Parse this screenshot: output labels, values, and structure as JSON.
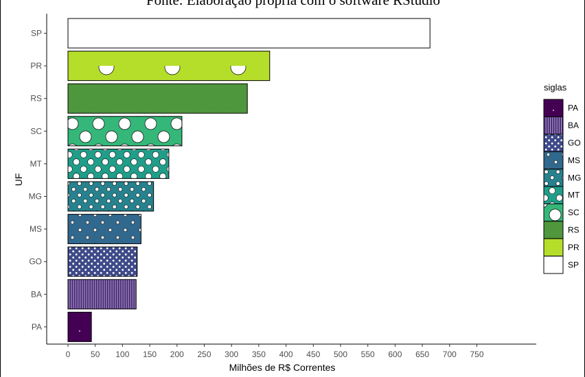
{
  "caption": "Fonte: Elaboração própria com o software RStudio",
  "chart_data": {
    "type": "bar",
    "orientation": "horizontal",
    "categories": [
      "SP",
      "PR",
      "RS",
      "SC",
      "MT",
      "MG",
      "MS",
      "GO",
      "BA",
      "PA"
    ],
    "values": [
      664,
      370,
      329,
      209,
      185,
      157,
      134,
      127,
      125,
      43
    ],
    "xlabel": "Milhões de R$ Correntes",
    "ylabel": "UF",
    "xlim": [
      0,
      790
    ],
    "xticks": [
      0,
      50,
      100,
      150,
      200,
      250,
      300,
      350,
      400,
      450,
      500,
      550,
      600,
      650,
      700,
      750
    ],
    "grid": false,
    "legend": {
      "title": "siglas",
      "position": "right",
      "entries": [
        "PA",
        "BA",
        "GO",
        "MS",
        "MG",
        "MT",
        "SC",
        "RS",
        "PR",
        "SP"
      ]
    },
    "colors": {
      "PA": "#440154",
      "BA": "#482878",
      "GO": "#3e4a89",
      "MS": "#31688e",
      "MG": "#26828e",
      "MT": "#1f9e89",
      "SC": "#35b779",
      "RS": "#6ece58",
      "PR": "#b5de2b",
      "SP": "#fde725"
    }
  }
}
